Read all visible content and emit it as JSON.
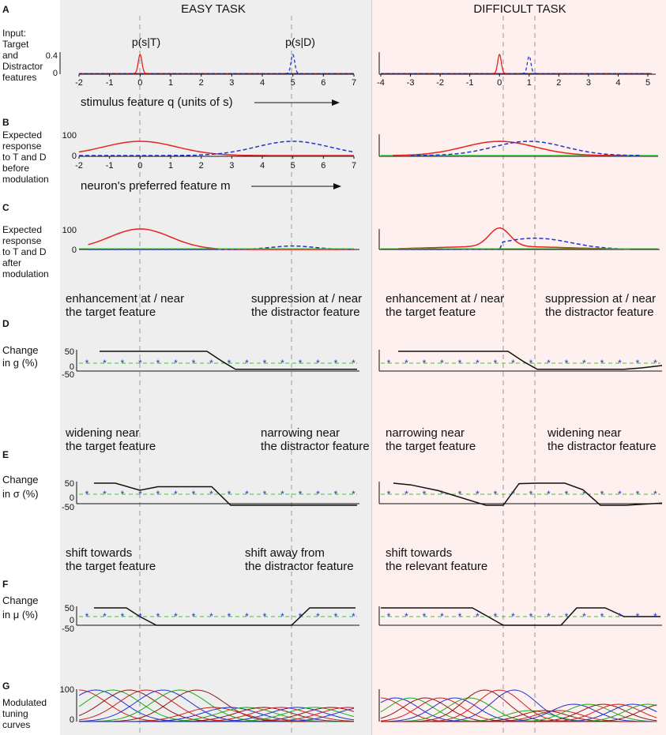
{
  "titles": {
    "easy": "EASY  TASK",
    "difficult": "DIFFICULT  TASK"
  },
  "colors": {
    "easy_bg": "#eeeeee",
    "difficult_bg": "#fdf0ee",
    "target": "#e8231f",
    "distractor": "#2233cc",
    "baseline": "#33cc33",
    "gain": "#111111"
  },
  "panels": {
    "A": {
      "letter": "A",
      "label": [
        "Input:",
        "Target",
        "and",
        "Distractor",
        "features"
      ],
      "ytick": "0.4",
      "ytick0": "0",
      "p_target": "p(s|T)",
      "p_distractor": "p(s|D)",
      "easy_ticks": [
        "-2",
        "-1",
        "0",
        "1",
        "2",
        "3",
        "4",
        "5",
        "6",
        "7"
      ],
      "difficult_ticks": [
        "-4",
        "-3",
        "-2",
        "-1",
        "0",
        "1",
        "2",
        "3",
        "4",
        "5"
      ],
      "axis_caption": "stimulus feature q (units of s)"
    },
    "B": {
      "letter": "B",
      "label": [
        "Expected",
        "response",
        "to T and D",
        "before",
        "modulation"
      ],
      "ytick": "100",
      "ytick0": "0",
      "easy_ticks": [
        "-2",
        "-1",
        "0",
        "1",
        "2",
        "3",
        "4",
        "5",
        "6",
        "7"
      ],
      "axis_caption": "neuron's preferred feature m"
    },
    "C": {
      "letter": "C",
      "label": [
        "Expected",
        "response",
        "to T and D",
        "after",
        "modulation"
      ],
      "ytick": "100",
      "ytick0": "0"
    },
    "D": {
      "letter": "D",
      "label": [
        "Change",
        "in g (%)"
      ],
      "yticks": [
        "50",
        "0",
        "-50"
      ],
      "easy_left": [
        "enhancement at / near",
        "the target feature"
      ],
      "easy_right": [
        "suppression at / near",
        "the distractor feature"
      ],
      "diff_left": [
        "enhancement at / near",
        "the target feature"
      ],
      "diff_right": [
        "suppression at / near",
        "the distractor feature"
      ]
    },
    "E": {
      "letter": "E",
      "label": [
        "Change",
        "in σ (%)"
      ],
      "yticks": [
        "50",
        "0",
        "-50"
      ],
      "easy_left": [
        "widening near",
        "the target feature"
      ],
      "easy_right": [
        "narrowing near",
        "the distractor feature"
      ],
      "diff_left": [
        "narrowing near",
        "the target feature"
      ],
      "diff_right": [
        "widening near",
        "the distractor feature"
      ]
    },
    "F": {
      "letter": "F",
      "label": [
        "Change",
        "in μ (%)"
      ],
      "yticks": [
        "50",
        "0",
        "-50"
      ],
      "easy_left": [
        "shift towards",
        "the target feature"
      ],
      "easy_right": [
        "shift away from",
        "the distractor feature"
      ],
      "diff_left": [
        "shift towards",
        "the relevant feature"
      ]
    },
    "G": {
      "letter": "G",
      "label": [
        "Modulated",
        "tuning",
        "curves"
      ],
      "ytick": "100",
      "ytick0": "0"
    }
  },
  "model": {
    "easy": {
      "target": 0,
      "distractor": 5,
      "xmin": -2,
      "xmax": 7
    },
    "difficult": {
      "target": 0,
      "distractor": 1,
      "xmin": -4,
      "xmax": 5.2
    }
  }
}
